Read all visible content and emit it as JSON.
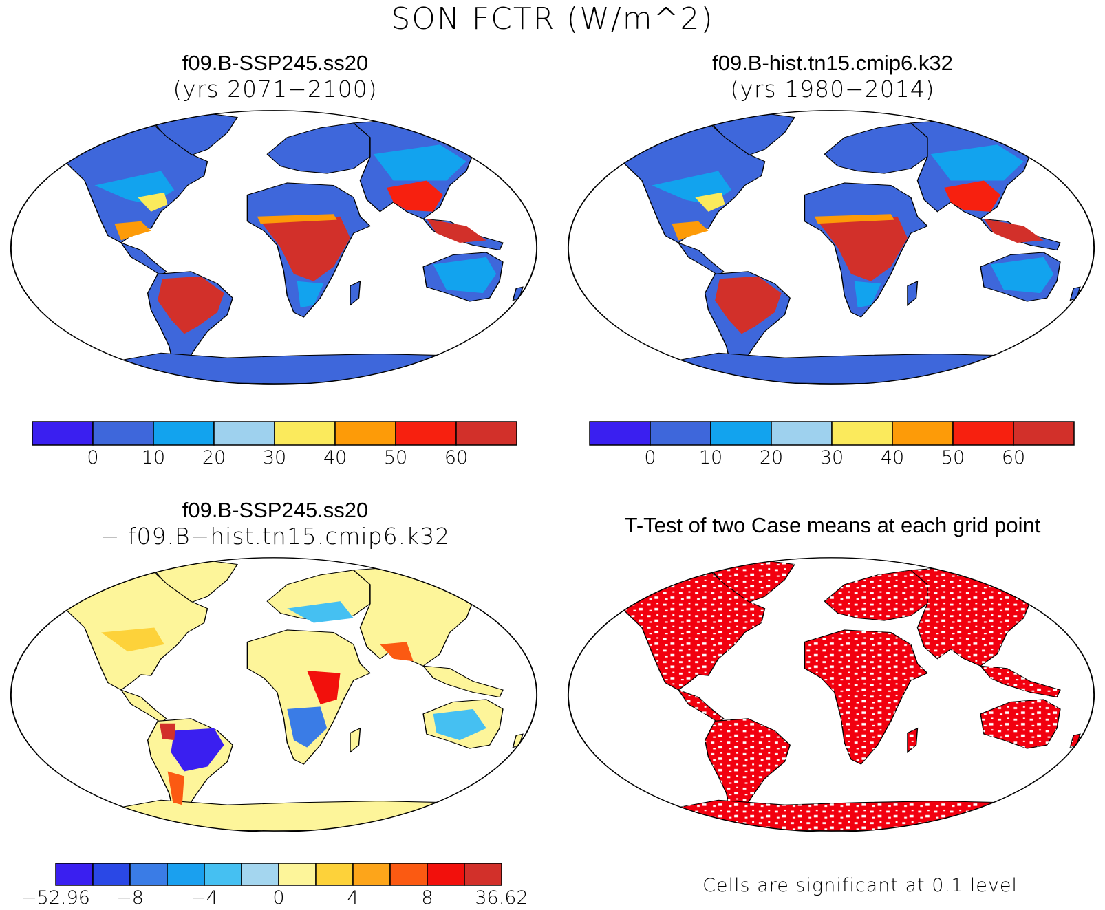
{
  "title": "SON FCTR (W/m^2)",
  "colors": {
    "levels": [
      "#3a1ff0",
      "#3e67db",
      "#12a3ee",
      "#9ed1ee",
      "#fbea5c",
      "#fd9b08",
      "#f7200f",
      "#d2302a"
    ],
    "diff_levels": [
      "#3a1ff0",
      "#2a48e6",
      "#3a7ce6",
      "#1aa0ef",
      "#45c0f2",
      "#a4d6ef",
      "#fdf59a",
      "#fdd23a",
      "#fda51a",
      "#fb5a12",
      "#f2100c",
      "#d2302a"
    ],
    "significant": "#f2000f",
    "land_outline": "#000000"
  },
  "panels": [
    {
      "id": "case1",
      "title": "f09.B-SSP245.ss20",
      "subtitle": "(yrs 2071−2100)",
      "colorbar": {
        "labels": [
          "0",
          "10",
          "20",
          "30",
          "40",
          "50",
          "60"
        ]
      }
    },
    {
      "id": "case2",
      "title": "f09.B-hist.tn15.cmip6.k32",
      "subtitle": "(yrs 1980−2014)",
      "colorbar": {
        "labels": [
          "0",
          "10",
          "20",
          "30",
          "40",
          "50",
          "60"
        ]
      }
    },
    {
      "id": "diff",
      "title": "f09.B-SSP245.ss20",
      "subtitle": "− f09.B−hist.tn15.cmip6.k32",
      "colorbar": {
        "labels": [
          "−52.96",
          "−8",
          "−4",
          "0",
          "4",
          "8",
          "36.62"
        ]
      }
    },
    {
      "id": "ttest",
      "title": "T-Test of two Case means at each grid point",
      "note": "Cells are significant at 0.1 level"
    }
  ]
}
